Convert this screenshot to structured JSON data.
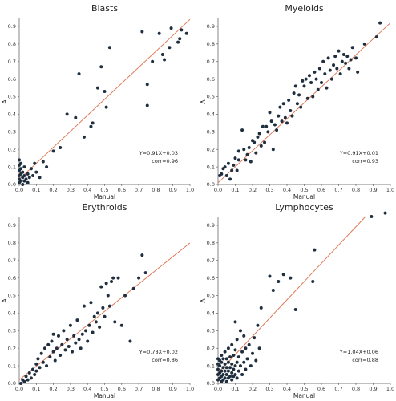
{
  "chart_data": [
    {
      "type": "scatter",
      "title": "Blasts",
      "xlabel": "Manual",
      "ylabel": "AI",
      "xlim": [
        0,
        1.0
      ],
      "ylim": [
        0,
        0.95
      ],
      "xticks": [
        "0.0",
        "0.1",
        "0.2",
        "0.3",
        "0.4",
        "0.5",
        "0.6",
        "0.7",
        "0.8",
        "0.9",
        "1.0"
      ],
      "yticks": [
        "0.0",
        "0.1",
        "0.2",
        "0.3",
        "0.4",
        "0.5",
        "0.6",
        "0.7",
        "0.8",
        "0.9"
      ],
      "annotation": [
        "Y=0.91X+0.03",
        "corr=0.96"
      ],
      "fit": {
        "slope": 0.91,
        "intercept": 0.03
      },
      "points": [
        [
          0.0,
          0.01
        ],
        [
          0.0,
          0.03
        ],
        [
          0.0,
          0.05
        ],
        [
          0.0,
          0.08
        ],
        [
          0.0,
          0.11
        ],
        [
          0.0,
          0.14
        ],
        [
          0.01,
          0.02
        ],
        [
          0.01,
          0.06
        ],
        [
          0.01,
          0.09
        ],
        [
          0.01,
          0.12
        ],
        [
          0.02,
          0.0
        ],
        [
          0.02,
          0.04
        ],
        [
          0.02,
          0.07
        ],
        [
          0.03,
          0.02
        ],
        [
          0.03,
          0.05
        ],
        [
          0.03,
          0.1
        ],
        [
          0.04,
          0.03
        ],
        [
          0.05,
          0.01
        ],
        [
          0.05,
          0.06
        ],
        [
          0.06,
          0.04
        ],
        [
          0.07,
          0.09
        ],
        [
          0.08,
          0.05
        ],
        [
          0.09,
          0.12
        ],
        [
          0.1,
          0.07
        ],
        [
          0.12,
          0.04
        ],
        [
          0.14,
          0.13
        ],
        [
          0.16,
          0.1
        ],
        [
          0.2,
          0.19
        ],
        [
          0.24,
          0.21
        ],
        [
          0.28,
          0.4
        ],
        [
          0.33,
          0.38
        ],
        [
          0.35,
          0.63
        ],
        [
          0.38,
          0.27
        ],
        [
          0.42,
          0.33
        ],
        [
          0.43,
          0.35
        ],
        [
          0.46,
          0.55
        ],
        [
          0.48,
          0.67
        ],
        [
          0.5,
          0.53
        ],
        [
          0.51,
          0.44
        ],
        [
          0.53,
          0.78
        ],
        [
          0.72,
          0.87
        ],
        [
          0.75,
          0.57
        ],
        [
          0.75,
          0.45
        ],
        [
          0.78,
          0.7
        ],
        [
          0.82,
          0.86
        ],
        [
          0.84,
          0.74
        ],
        [
          0.85,
          0.71
        ],
        [
          0.88,
          0.78
        ],
        [
          0.89,
          0.89
        ],
        [
          0.93,
          0.81
        ],
        [
          0.94,
          0.83
        ],
        [
          0.95,
          0.88
        ],
        [
          0.98,
          0.86
        ]
      ]
    },
    {
      "type": "scatter",
      "title": "Myeloids",
      "xlabel": "Manual",
      "ylabel": "AI",
      "xlim": [
        0,
        1.0
      ],
      "ylim": [
        0,
        0.95
      ],
      "xticks": [
        "0.0",
        "0.1",
        "0.2",
        "0.3",
        "0.4",
        "0.5",
        "0.6",
        "0.7",
        "0.8",
        "0.9",
        "1.0"
      ],
      "yticks": [
        "0.0",
        "0.1",
        "0.2",
        "0.3",
        "0.4",
        "0.5",
        "0.6",
        "0.7",
        "0.8",
        "0.9"
      ],
      "annotation": [
        "Y=0.91X+0.01",
        "corr=0.93"
      ],
      "fit": {
        "slope": 0.91,
        "intercept": 0.01
      },
      "points": [
        [
          0.01,
          0.05
        ],
        [
          0.02,
          0.06
        ],
        [
          0.03,
          0.09
        ],
        [
          0.04,
          0.1
        ],
        [
          0.05,
          0.05
        ],
        [
          0.06,
          0.12
        ],
        [
          0.07,
          0.03
        ],
        [
          0.08,
          0.08
        ],
        [
          0.09,
          0.11
        ],
        [
          0.1,
          0.15
        ],
        [
          0.11,
          0.08
        ],
        [
          0.12,
          0.19
        ],
        [
          0.12,
          0.14
        ],
        [
          0.14,
          0.31
        ],
        [
          0.15,
          0.2
        ],
        [
          0.16,
          0.14
        ],
        [
          0.17,
          0.17
        ],
        [
          0.18,
          0.21
        ],
        [
          0.19,
          0.13
        ],
        [
          0.2,
          0.25
        ],
        [
          0.21,
          0.24
        ],
        [
          0.22,
          0.18
        ],
        [
          0.23,
          0.27
        ],
        [
          0.24,
          0.29
        ],
        [
          0.25,
          0.22
        ],
        [
          0.26,
          0.33
        ],
        [
          0.27,
          0.24
        ],
        [
          0.28,
          0.33
        ],
        [
          0.29,
          0.3
        ],
        [
          0.3,
          0.41
        ],
        [
          0.31,
          0.36
        ],
        [
          0.32,
          0.2
        ],
        [
          0.33,
          0.34
        ],
        [
          0.34,
          0.31
        ],
        [
          0.35,
          0.39
        ],
        [
          0.36,
          0.44
        ],
        [
          0.37,
          0.36
        ],
        [
          0.38,
          0.46
        ],
        [
          0.39,
          0.38
        ],
        [
          0.4,
          0.35
        ],
        [
          0.41,
          0.48
        ],
        [
          0.42,
          0.42
        ],
        [
          0.43,
          0.39
        ],
        [
          0.44,
          0.52
        ],
        [
          0.45,
          0.56
        ],
        [
          0.46,
          0.46
        ],
        [
          0.47,
          0.51
        ],
        [
          0.48,
          0.44
        ],
        [
          0.49,
          0.59
        ],
        [
          0.5,
          0.56
        ],
        [
          0.51,
          0.6
        ],
        [
          0.52,
          0.49
        ],
        [
          0.53,
          0.62
        ],
        [
          0.54,
          0.58
        ],
        [
          0.55,
          0.5
        ],
        [
          0.56,
          0.64
        ],
        [
          0.57,
          0.6
        ],
        [
          0.58,
          0.54
        ],
        [
          0.59,
          0.66
        ],
        [
          0.6,
          0.58
        ],
        [
          0.61,
          0.7
        ],
        [
          0.62,
          0.63
        ],
        [
          0.63,
          0.55
        ],
        [
          0.64,
          0.72
        ],
        [
          0.65,
          0.65
        ],
        [
          0.66,
          0.6
        ],
        [
          0.67,
          0.68
        ],
        [
          0.68,
          0.73
        ],
        [
          0.69,
          0.66
        ],
        [
          0.7,
          0.76
        ],
        [
          0.71,
          0.63
        ],
        [
          0.72,
          0.7
        ],
        [
          0.73,
          0.74
        ],
        [
          0.74,
          0.69
        ],
        [
          0.75,
          0.73
        ],
        [
          0.76,
          0.66
        ],
        [
          0.77,
          0.71
        ],
        [
          0.78,
          0.78
        ],
        [
          0.8,
          0.72
        ],
        [
          0.81,
          0.64
        ],
        [
          0.85,
          0.8
        ],
        [
          0.92,
          0.84
        ],
        [
          0.94,
          0.92
        ]
      ]
    },
    {
      "type": "scatter",
      "title": "Erythroids",
      "xlabel": "Manual",
      "ylabel": "AI",
      "xlim": [
        0,
        1.0
      ],
      "ylim": [
        0,
        0.95
      ],
      "xticks": [
        "0.0",
        "0.1",
        "0.2",
        "0.3",
        "0.4",
        "0.5",
        "0.6",
        "0.7",
        "0.8",
        "0.9",
        "1.0"
      ],
      "yticks": [
        "0.0",
        "0.1",
        "0.2",
        "0.3",
        "0.4",
        "0.5",
        "0.6",
        "0.7",
        "0.8",
        "0.9"
      ],
      "annotation": [
        "Y=0.78X+0.02",
        "corr=0.86"
      ],
      "fit": {
        "slope": 0.78,
        "intercept": 0.02
      },
      "points": [
        [
          0.01,
          0.0
        ],
        [
          0.02,
          0.02
        ],
        [
          0.03,
          0.01
        ],
        [
          0.04,
          0.04
        ],
        [
          0.05,
          0.02
        ],
        [
          0.06,
          0.06
        ],
        [
          0.07,
          0.03
        ],
        [
          0.08,
          0.08
        ],
        [
          0.09,
          0.05
        ],
        [
          0.1,
          0.11
        ],
        [
          0.1,
          0.07
        ],
        [
          0.11,
          0.14
        ],
        [
          0.12,
          0.09
        ],
        [
          0.13,
          0.17
        ],
        [
          0.14,
          0.12
        ],
        [
          0.15,
          0.2
        ],
        [
          0.16,
          0.1
        ],
        [
          0.17,
          0.22
        ],
        [
          0.18,
          0.15
        ],
        [
          0.19,
          0.24
        ],
        [
          0.2,
          0.18
        ],
        [
          0.2,
          0.28
        ],
        [
          0.21,
          0.13
        ],
        [
          0.22,
          0.2
        ],
        [
          0.23,
          0.27
        ],
        [
          0.24,
          0.16
        ],
        [
          0.25,
          0.22
        ],
        [
          0.26,
          0.3
        ],
        [
          0.27,
          0.19
        ],
        [
          0.28,
          0.25
        ],
        [
          0.29,
          0.21
        ],
        [
          0.3,
          0.33
        ],
        [
          0.31,
          0.18
        ],
        [
          0.32,
          0.27
        ],
        [
          0.33,
          0.23
        ],
        [
          0.34,
          0.36
        ],
        [
          0.35,
          0.25
        ],
        [
          0.36,
          0.2
        ],
        [
          0.37,
          0.28
        ],
        [
          0.38,
          0.44
        ],
        [
          0.39,
          0.3
        ],
        [
          0.4,
          0.24
        ],
        [
          0.41,
          0.33
        ],
        [
          0.42,
          0.46
        ],
        [
          0.43,
          0.29
        ],
        [
          0.44,
          0.38
        ],
        [
          0.45,
          0.35
        ],
        [
          0.46,
          0.4
        ],
        [
          0.47,
          0.32
        ],
        [
          0.48,
          0.55
        ],
        [
          0.49,
          0.43
        ],
        [
          0.5,
          0.38
        ],
        [
          0.51,
          0.57
        ],
        [
          0.52,
          0.5
        ],
        [
          0.53,
          0.44
        ],
        [
          0.54,
          0.58
        ],
        [
          0.55,
          0.6
        ],
        [
          0.56,
          0.35
        ],
        [
          0.58,
          0.6
        ],
        [
          0.6,
          0.33
        ],
        [
          0.62,
          0.5
        ],
        [
          0.65,
          0.24
        ],
        [
          0.67,
          0.54
        ],
        [
          0.7,
          0.6
        ],
        [
          0.72,
          0.73
        ],
        [
          0.74,
          0.63
        ]
      ]
    },
    {
      "type": "scatter",
      "title": "Lymphocytes",
      "xlabel": "Manual",
      "ylabel": "AI",
      "xlim": [
        0,
        1.0
      ],
      "ylim": [
        0,
        0.95
      ],
      "xticks": [
        "0.0",
        "0.1",
        "0.2",
        "0.3",
        "0.4",
        "0.5",
        "0.6",
        "0.7",
        "0.8",
        "0.9",
        "1.0"
      ],
      "yticks": [
        "0.0",
        "0.1",
        "0.2",
        "0.3",
        "0.4",
        "0.5",
        "0.6",
        "0.7",
        "0.8",
        "0.9"
      ],
      "annotation": [
        "Y=1.04X+0.06",
        "corr=0.88"
      ],
      "fit": {
        "slope": 1.04,
        "intercept": 0.06
      },
      "points": [
        [
          0.0,
          0.02
        ],
        [
          0.0,
          0.05
        ],
        [
          0.0,
          0.08
        ],
        [
          0.0,
          0.11
        ],
        [
          0.0,
          0.14
        ],
        [
          0.01,
          0.03
        ],
        [
          0.01,
          0.06
        ],
        [
          0.01,
          0.1
        ],
        [
          0.01,
          0.13
        ],
        [
          0.02,
          0.01
        ],
        [
          0.02,
          0.04
        ],
        [
          0.02,
          0.07
        ],
        [
          0.02,
          0.12
        ],
        [
          0.02,
          0.16
        ],
        [
          0.03,
          0.02
        ],
        [
          0.03,
          0.05
        ],
        [
          0.03,
          0.09
        ],
        [
          0.03,
          0.14
        ],
        [
          0.04,
          0.03
        ],
        [
          0.04,
          0.07
        ],
        [
          0.04,
          0.11
        ],
        [
          0.04,
          0.18
        ],
        [
          0.05,
          0.01
        ],
        [
          0.05,
          0.05
        ],
        [
          0.05,
          0.09
        ],
        [
          0.05,
          0.14
        ],
        [
          0.06,
          0.03
        ],
        [
          0.06,
          0.07
        ],
        [
          0.06,
          0.12
        ],
        [
          0.06,
          0.2
        ],
        [
          0.07,
          0.04
        ],
        [
          0.07,
          0.09
        ],
        [
          0.07,
          0.15
        ],
        [
          0.08,
          0.02
        ],
        [
          0.08,
          0.06
        ],
        [
          0.08,
          0.11
        ],
        [
          0.08,
          0.22
        ],
        [
          0.09,
          0.04
        ],
        [
          0.09,
          0.08
        ],
        [
          0.09,
          0.16
        ],
        [
          0.1,
          0.05
        ],
        [
          0.1,
          0.1
        ],
        [
          0.1,
          0.19
        ],
        [
          0.1,
          0.35
        ],
        [
          0.11,
          0.03
        ],
        [
          0.11,
          0.12
        ],
        [
          0.11,
          0.25
        ],
        [
          0.12,
          0.07
        ],
        [
          0.12,
          0.15
        ],
        [
          0.13,
          0.1
        ],
        [
          0.13,
          0.3
        ],
        [
          0.14,
          0.05
        ],
        [
          0.14,
          0.18
        ],
        [
          0.15,
          0.12
        ],
        [
          0.15,
          0.27
        ],
        [
          0.16,
          0.08
        ],
        [
          0.16,
          0.2
        ],
        [
          0.17,
          0.14
        ],
        [
          0.18,
          0.22
        ],
        [
          0.19,
          0.1
        ],
        [
          0.2,
          0.17
        ],
        [
          0.21,
          0.26
        ],
        [
          0.22,
          0.13
        ],
        [
          0.23,
          0.33
        ],
        [
          0.24,
          0.2
        ],
        [
          0.25,
          0.43
        ],
        [
          0.3,
          0.61
        ],
        [
          0.32,
          0.53
        ],
        [
          0.35,
          0.58
        ],
        [
          0.38,
          0.62
        ],
        [
          0.42,
          0.6
        ],
        [
          0.45,
          0.42
        ],
        [
          0.55,
          0.58
        ],
        [
          0.56,
          0.76
        ],
        [
          0.89,
          0.95
        ],
        [
          0.97,
          0.97
        ]
      ]
    }
  ],
  "colors": {
    "points": "#1f2f3f",
    "fit_line": "#e07856",
    "axis": "#555555"
  }
}
